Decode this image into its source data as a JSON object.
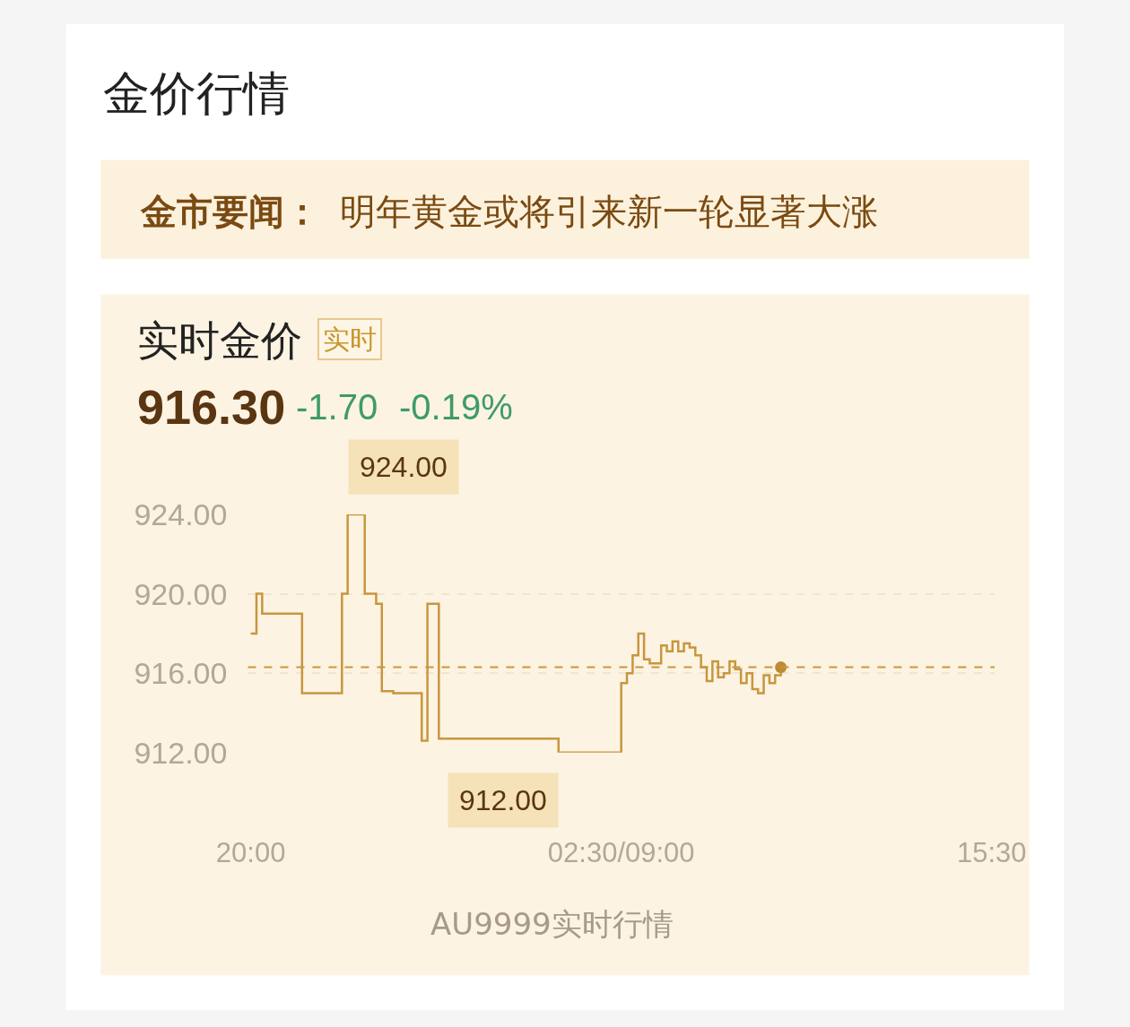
{
  "chart_data": {
    "type": "step",
    "title": "金价行情",
    "subtitle": "实时金价",
    "annotations": [
      "金市要闻：",
      "明年黄金或将引来新一轮显著大涨",
      "实时",
      "916.30",
      "-1.70",
      "-0.19%",
      "AU9999实时行情",
      "924.00",
      "912.00"
    ],
    "categories": [
      "20:00",
      null,
      null,
      null,
      null,
      null,
      null,
      null,
      null,
      null,
      null,
      null,
      null,
      null,
      null,
      null,
      null,
      null,
      null,
      null,
      null,
      null,
      null,
      null,
      null,
      null,
      null,
      null,
      null,
      null,
      null,
      null,
      null,
      null,
      null,
      null,
      null,
      null,
      null,
      null,
      null,
      null,
      null,
      null,
      null,
      null,
      null,
      null,
      null,
      null,
      null,
      null,
      null,
      null,
      null,
      null,
      null,
      null,
      null,
      null,
      null,
      null,
      null,
      null,
      null,
      "02:30/09:00",
      null,
      null,
      null,
      null,
      null,
      null,
      null,
      null,
      null,
      null,
      null,
      null,
      null,
      null,
      null,
      null,
      null,
      null,
      null,
      null,
      null,
      null,
      null,
      null,
      null,
      null,
      null,
      null,
      null,
      null,
      null,
      null,
      null,
      null,
      null,
      null,
      null,
      null,
      null,
      null,
      null,
      null,
      null,
      null,
      null,
      null,
      null,
      null,
      null,
      null,
      null,
      null,
      null,
      null,
      null,
      null,
      null,
      null,
      null,
      null,
      null,
      null,
      null,
      null,
      "15:30"
    ],
    "series": [
      {
        "color": "#c8963e",
        "values": [
          918.0,
          920.0,
          919.0,
          919.0,
          919.0,
          919.0,
          919.0,
          919.0,
          919.0,
          915.0,
          915.0,
          915.0,
          915.0,
          915.0,
          915.0,
          915.0,
          920.0,
          924.0,
          924.0,
          924.0,
          920.0,
          920.0,
          919.5,
          915.1,
          915.1,
          915.0,
          915.0,
          915.0,
          915.0,
          915.0,
          912.6,
          919.5,
          919.5,
          912.7,
          912.7,
          912.7,
          912.7,
          912.7,
          912.7,
          912.7,
          912.7,
          912.7,
          912.7,
          912.7,
          912.7,
          912.7,
          912.7,
          912.7,
          912.7,
          912.7,
          912.7,
          912.7,
          912.7,
          912.7,
          912.0,
          912.0,
          912.0,
          912.0,
          912.0,
          912.0,
          912.0,
          912.0,
          912.0,
          912.0,
          912.0,
          915.5,
          916.0,
          916.9,
          918.0,
          916.7,
          916.5,
          916.5,
          917.4,
          917.1,
          917.6,
          917.1,
          917.5,
          917.3,
          916.9,
          916.3,
          915.6,
          916.6,
          915.8,
          916.0,
          916.6,
          916.2,
          915.5,
          916.0,
          915.2,
          915.0,
          915.9,
          915.5,
          915.9,
          916.3,
          null,
          null,
          null,
          null,
          null,
          null,
          null,
          null,
          null,
          null,
          null,
          null,
          null,
          null,
          null,
          null,
          null,
          null,
          null,
          null,
          null,
          null,
          null,
          null,
          null,
          null,
          null,
          null,
          null,
          null,
          null,
          null,
          null,
          null,
          null,
          null,
          null
        ]
      },
      {
        "type": "scatter",
        "color": "#bf8a38",
        "values": [
          null,
          null,
          null,
          null,
          null,
          null,
          null,
          null,
          null,
          null,
          null,
          null,
          null,
          null,
          null,
          null,
          null,
          null,
          null,
          null,
          null,
          null,
          null,
          null,
          null,
          null,
          null,
          null,
          null,
          null,
          null,
          null,
          null,
          null,
          null,
          null,
          null,
          null,
          null,
          null,
          null,
          null,
          null,
          null,
          null,
          null,
          null,
          null,
          null,
          null,
          null,
          null,
          null,
          null,
          null,
          null,
          null,
          null,
          null,
          null,
          null,
          null,
          null,
          null,
          null,
          null,
          null,
          null,
          null,
          null,
          null,
          null,
          null,
          null,
          null,
          null,
          null,
          null,
          null,
          null,
          null,
          null,
          null,
          null,
          null,
          null,
          null,
          null,
          null,
          null,
          null,
          null,
          null,
          916.3,
          null,
          null,
          null,
          null,
          null,
          null,
          null,
          null,
          null,
          null,
          null,
          null,
          null,
          null,
          null,
          null,
          null,
          null,
          null,
          null,
          null,
          null,
          null,
          null,
          null,
          null,
          null,
          null,
          null,
          null,
          null,
          null,
          null,
          null,
          null,
          null,
          null
        ]
      }
    ],
    "ylim": [
      912,
      924
    ],
    "yticks": [
      {
        "value": 912,
        "label": "912.00"
      },
      {
        "value": 916,
        "label": "916.00"
      },
      {
        "value": 920,
        "label": "920.00"
      },
      {
        "value": 924,
        "label": "924.00"
      }
    ],
    "ref_lines": [
      {
        "axis": "y",
        "value": 916.3,
        "color": "#c8963e",
        "line_style": "dashed"
      }
    ],
    "grid": "y"
  }
}
